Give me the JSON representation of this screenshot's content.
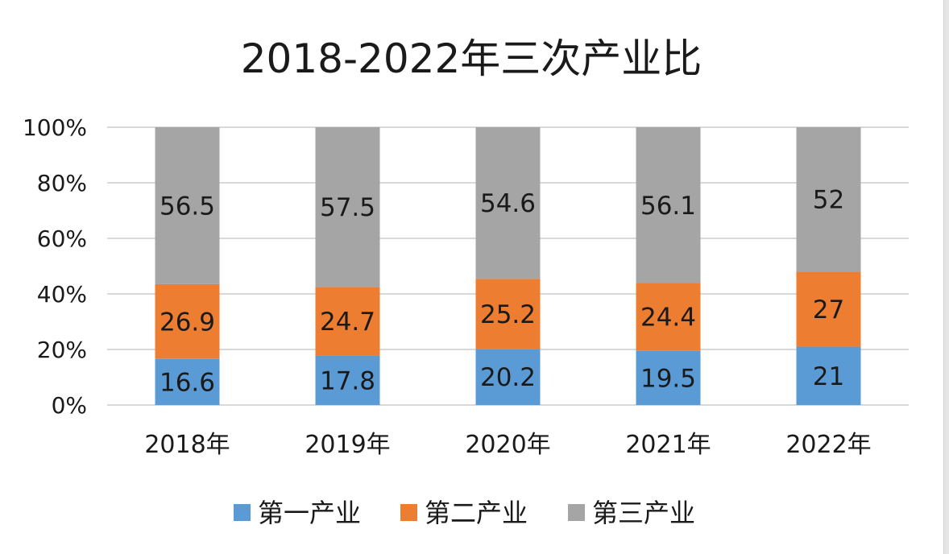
{
  "chart_data": {
    "type": "bar",
    "stacked": true,
    "percent_stacked": true,
    "title": "2018-2022年三次产业比",
    "categories": [
      "2018年",
      "2019年",
      "2020年",
      "2021年",
      "2022年"
    ],
    "series": [
      {
        "name": "第一产业",
        "color": "#5b9bd5",
        "values": [
          16.6,
          17.8,
          20.2,
          19.5,
          21
        ]
      },
      {
        "name": "第二产业",
        "color": "#ed7d31",
        "values": [
          26.9,
          24.7,
          25.2,
          24.4,
          27
        ]
      },
      {
        "name": "第三产业",
        "color": "#a5a5a5",
        "values": [
          56.5,
          57.5,
          54.6,
          56.1,
          52
        ]
      }
    ],
    "y_ticks": [
      "0%",
      "20%",
      "40%",
      "60%",
      "80%",
      "100%"
    ],
    "ylim": [
      0,
      100
    ],
    "grid": true,
    "legend_position": "bottom"
  }
}
